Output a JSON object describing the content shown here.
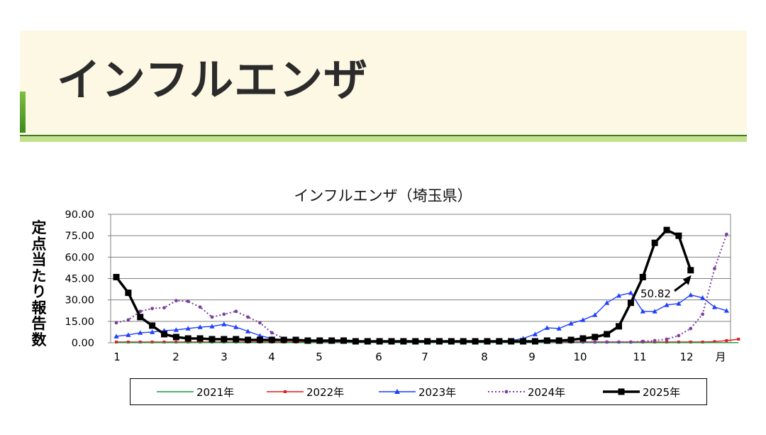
{
  "header": {
    "title": "インフルエンザ"
  },
  "colors": {
    "banner_bg": "#fcf8e3",
    "accent": "#5ea52f",
    "rule": "#3d7a2a"
  },
  "chart_data": {
    "type": "line",
    "title": "インフルエンザ（埼玉県）",
    "ylabel": "定点当たり報告数",
    "xlabel": "月",
    "ylim": [
      0,
      90
    ],
    "yticks": [
      "0.00",
      "15.00",
      "30.00",
      "45.00",
      "60.00",
      "75.00",
      "90.00"
    ],
    "xticks": [
      "1",
      "2",
      "3",
      "4",
      "5",
      "6",
      "7",
      "8",
      "9",
      "10",
      "11",
      "12"
    ],
    "grid": true,
    "legend_position": "bottom",
    "annotation": {
      "text": "50.82",
      "week": 49,
      "value": 50.82
    },
    "weeks": 53,
    "series": [
      {
        "name": "2021年",
        "color": "#1a9641",
        "marker": "none",
        "style": "solid",
        "values": [
          0.1,
          0.1,
          0.1,
          0.1,
          0.1,
          0.1,
          0.1,
          0.1,
          0.1,
          0.1,
          0.1,
          0.1,
          0.1,
          0.1,
          0.1,
          0.1,
          0.1,
          0.1,
          0.1,
          0.1,
          0.1,
          0.1,
          0.1,
          0.1,
          0.1,
          0.1,
          0.1,
          0.1,
          0.1,
          0.1,
          0.1,
          0.1,
          0.1,
          0.1,
          0.1,
          0.1,
          0.1,
          0.1,
          0.1,
          0.1,
          0.1,
          0.1,
          0.1,
          0.1,
          0.1,
          0.1,
          0.1,
          0.1,
          0.1,
          0.1,
          0.1,
          0.1,
          0.1
        ]
      },
      {
        "name": "2022年",
        "color": "#e41a1c",
        "marker": "square",
        "style": "solid",
        "values": [
          0.5,
          0.5,
          0.5,
          0.5,
          0.5,
          0.5,
          0.5,
          0.5,
          0.5,
          0.5,
          0.5,
          0.5,
          0.5,
          0.5,
          0.5,
          0.5,
          0.5,
          0.5,
          0.5,
          0.5,
          0.5,
          0.5,
          0.5,
          0.5,
          0.5,
          0.5,
          0.5,
          0.5,
          0.5,
          0.5,
          0.5,
          0.5,
          0.5,
          0.5,
          0.5,
          0.5,
          0.5,
          0.5,
          0.5,
          0.5,
          0.5,
          0.5,
          0.5,
          0.5,
          0.5,
          0.5,
          0.5,
          0.5,
          0.5,
          0.5,
          0.8,
          1.5,
          2.5
        ]
      },
      {
        "name": "2023年",
        "color": "#1f3fff",
        "marker": "triangle",
        "style": "solid",
        "values": [
          4.5,
          5.5,
          7,
          7.5,
          8.5,
          9,
          10,
          11,
          11.5,
          13,
          11,
          8,
          5,
          3,
          2,
          1.8,
          1.5,
          1.3,
          1.2,
          1,
          1,
          1,
          1,
          1,
          1,
          1,
          1,
          1,
          1,
          1,
          1,
          1,
          1,
          1.5,
          3,
          6,
          10.5,
          10,
          13.5,
          16,
          19.5,
          28,
          33,
          35,
          22,
          22,
          26.5,
          27.5,
          33.5,
          31.5,
          25,
          22.5
        ]
      },
      {
        "name": "2024年",
        "color": "#7b3f9e",
        "marker": "circle",
        "style": "dotted",
        "values": [
          14,
          16,
          22,
          24,
          24.5,
          29.5,
          29,
          25,
          18,
          20,
          22,
          18,
          14,
          7,
          3,
          1.5,
          1,
          0.8,
          0.5,
          0.5,
          0.5,
          0.5,
          0.5,
          0.5,
          0.5,
          0.5,
          0.5,
          0.5,
          0.5,
          0.5,
          0.5,
          0.5,
          0.5,
          0.5,
          0.5,
          0.5,
          0.5,
          0.5,
          0.5,
          0.5,
          0.5,
          0.5,
          0.5,
          0.5,
          1,
          1.5,
          2.5,
          5,
          10,
          20,
          52,
          76
        ]
      },
      {
        "name": "2025年",
        "color": "#000000",
        "marker": "square",
        "style": "solid",
        "values": [
          46,
          35,
          18,
          12,
          6,
          4,
          3,
          3,
          2.5,
          2.5,
          2.5,
          2,
          2,
          2,
          2,
          2,
          1.5,
          1.5,
          1.5,
          1.5,
          1,
          1,
          1,
          1,
          1,
          1,
          1,
          1,
          1,
          1,
          1,
          1,
          1,
          1,
          1,
          1,
          1.5,
          1.5,
          2,
          3,
          4,
          6,
          11.5,
          28,
          46,
          70,
          79,
          75,
          50.82
        ]
      }
    ]
  }
}
